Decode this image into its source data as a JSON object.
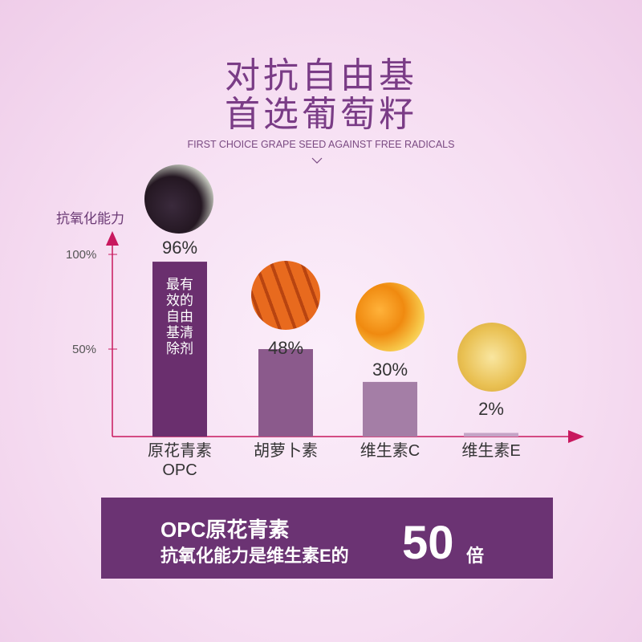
{
  "header": {
    "title_line1": "对抗自由基",
    "title_line2": "首选葡萄籽",
    "subtitle": "FIRST CHOICE GRAPE SEED AGAINST FREE RADICALS",
    "chevron_icon": "chevron-down-icon"
  },
  "chart_data": {
    "type": "bar",
    "ylabel": "抗氧化能力",
    "yticks": [
      "100%",
      "50%"
    ],
    "ytick_values": [
      100,
      50
    ],
    "ylim": [
      0,
      100
    ],
    "categories": [
      "原花青素\nOPC",
      "胡萝卜素",
      "维生素C",
      "维生素E"
    ],
    "values": [
      96,
      48,
      30,
      2
    ],
    "value_labels": [
      "96%",
      "48%",
      "30%",
      "2%"
    ],
    "bar_colors": [
      "#6a2f6e",
      "#8b5a8c",
      "#a47ea6",
      "#c4a4c6"
    ],
    "bar_annotation": "最有效的自由基清除剂",
    "axis_color": "#c8185e",
    "images": [
      "grapes",
      "carrots",
      "oranges",
      "vitamin-e-capsules"
    ]
  },
  "banner": {
    "line1": "OPC原花青素",
    "line2": "抗氧化能力是维生素E的",
    "number": "50",
    "suffix": "倍",
    "color": "#6b3373"
  }
}
